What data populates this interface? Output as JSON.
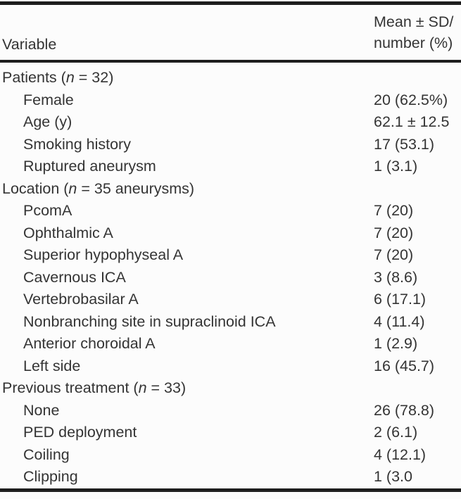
{
  "colors": {
    "text": "#343434",
    "rule": "#1e1e1e",
    "background": "#fcfcfc"
  },
  "table": {
    "header": {
      "variable": "Variable",
      "value_line1": "Mean ± SD/",
      "value_line2": "number (%)"
    },
    "sections": [
      {
        "label_prefix": "Patients (",
        "label_n": "n",
        "label_suffix": " = 32)",
        "rows": [
          {
            "label": "Female",
            "value": "20 (62.5%)"
          },
          {
            "label": "Age (y)",
            "value": "62.1 ± 12.5"
          },
          {
            "label": "Smoking history",
            "value": "17 (53.1)"
          },
          {
            "label": "Ruptured aneurysm",
            "value": "1 (3.1)"
          }
        ]
      },
      {
        "label_prefix": "Location (",
        "label_n": "n",
        "label_suffix": " = 35 aneurysms)",
        "rows": [
          {
            "label": "PcomA",
            "value": "7 (20)"
          },
          {
            "label": "Ophthalmic A",
            "value": "7 (20)"
          },
          {
            "label": "Superior hypophyseal A",
            "value": "7 (20)"
          },
          {
            "label": "Cavernous ICA",
            "value": "3 (8.6)"
          },
          {
            "label": "Vertebrobasilar A",
            "value": "6 (17.1)"
          },
          {
            "label": "Nonbranching site in supraclinoid ICA",
            "value": "4 (11.4)"
          },
          {
            "label": "Anterior choroidal A",
            "value": "1 (2.9)"
          },
          {
            "label": "Left side",
            "value": "16 (45.7)"
          }
        ]
      },
      {
        "label_prefix": "Previous treatment (",
        "label_n": "n",
        "label_suffix": " = 33)",
        "rows": [
          {
            "label": "None",
            "value": "26 (78.8)"
          },
          {
            "label": "PED deployment",
            "value": "2 (6.1)"
          },
          {
            "label": "Coiling",
            "value": "4 (12.1)"
          },
          {
            "label": "Clipping",
            "value": "1 (3.0"
          }
        ]
      }
    ]
  }
}
